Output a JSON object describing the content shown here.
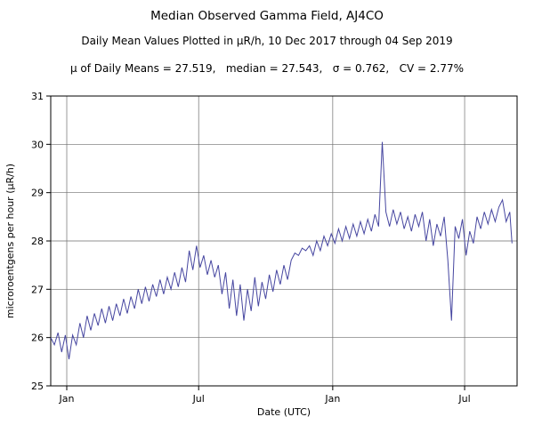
{
  "chart_data": {
    "type": "line",
    "title": "Median Observed Gamma Field, AJ4CO",
    "subtitle": "Daily Mean Values Plotted in μR/h, 10 Dec 2017 through 04 Sep 2019",
    "stats_line": "μ of Daily Means = 27.519,   median = 27.543,   σ = 0.762,   CV = 2.77%",
    "xlabel": "Date (UTC)",
    "ylabel": "microroentgens per hour (μR/h)",
    "ylim": [
      25,
      31
    ],
    "x_domain_days": [
      0,
      640
    ],
    "grid": true,
    "legend": "none",
    "line_color": "#4646a0",
    "grid_color": "#6e6e6e",
    "border_color": "#000000",
    "y_ticks": [
      25,
      26,
      27,
      28,
      29,
      30,
      31
    ],
    "x_ticks": [
      {
        "day": 22,
        "label": "Jan"
      },
      {
        "day": 203,
        "label": "Jul"
      },
      {
        "day": 387,
        "label": "Jan"
      },
      {
        "day": 568,
        "label": "Jul"
      }
    ],
    "series": [
      {
        "name": "daily mean gamma field (μR/h) vs days since 10 Dec 2017",
        "points": [
          [
            0,
            26.0
          ],
          [
            5,
            25.85
          ],
          [
            10,
            26.1
          ],
          [
            15,
            25.7
          ],
          [
            20,
            26.05
          ],
          [
            25,
            25.55
          ],
          [
            30,
            26.05
          ],
          [
            35,
            25.85
          ],
          [
            40,
            26.3
          ],
          [
            45,
            26.0
          ],
          [
            50,
            26.45
          ],
          [
            55,
            26.15
          ],
          [
            60,
            26.5
          ],
          [
            65,
            26.25
          ],
          [
            70,
            26.6
          ],
          [
            75,
            26.3
          ],
          [
            80,
            26.65
          ],
          [
            85,
            26.35
          ],
          [
            90,
            26.7
          ],
          [
            95,
            26.45
          ],
          [
            100,
            26.8
          ],
          [
            105,
            26.5
          ],
          [
            110,
            26.85
          ],
          [
            115,
            26.6
          ],
          [
            120,
            27.0
          ],
          [
            125,
            26.7
          ],
          [
            130,
            27.05
          ],
          [
            135,
            26.75
          ],
          [
            140,
            27.1
          ],
          [
            145,
            26.85
          ],
          [
            150,
            27.2
          ],
          [
            155,
            26.9
          ],
          [
            160,
            27.25
          ],
          [
            165,
            27.0
          ],
          [
            170,
            27.35
          ],
          [
            175,
            27.05
          ],
          [
            180,
            27.45
          ],
          [
            185,
            27.15
          ],
          [
            190,
            27.8
          ],
          [
            195,
            27.4
          ],
          [
            200,
            27.9
          ],
          [
            205,
            27.45
          ],
          [
            210,
            27.7
          ],
          [
            215,
            27.3
          ],
          [
            220,
            27.6
          ],
          [
            225,
            27.25
          ],
          [
            230,
            27.5
          ],
          [
            235,
            26.9
          ],
          [
            240,
            27.35
          ],
          [
            245,
            26.6
          ],
          [
            250,
            27.2
          ],
          [
            255,
            26.45
          ],
          [
            260,
            27.1
          ],
          [
            265,
            26.35
          ],
          [
            270,
            27.0
          ],
          [
            275,
            26.55
          ],
          [
            280,
            27.25
          ],
          [
            285,
            26.65
          ],
          [
            290,
            27.15
          ],
          [
            295,
            26.8
          ],
          [
            300,
            27.3
          ],
          [
            305,
            26.95
          ],
          [
            310,
            27.4
          ],
          [
            315,
            27.1
          ],
          [
            320,
            27.5
          ],
          [
            325,
            27.2
          ],
          [
            330,
            27.6
          ],
          [
            335,
            27.75
          ],
          [
            340,
            27.7
          ],
          [
            345,
            27.85
          ],
          [
            350,
            27.8
          ],
          [
            355,
            27.9
          ],
          [
            360,
            27.7
          ],
          [
            365,
            28.0
          ],
          [
            370,
            27.8
          ],
          [
            375,
            28.1
          ],
          [
            380,
            27.9
          ],
          [
            385,
            28.15
          ],
          [
            390,
            27.95
          ],
          [
            395,
            28.25
          ],
          [
            400,
            28.0
          ],
          [
            405,
            28.3
          ],
          [
            410,
            28.05
          ],
          [
            415,
            28.35
          ],
          [
            420,
            28.1
          ],
          [
            425,
            28.4
          ],
          [
            430,
            28.15
          ],
          [
            435,
            28.45
          ],
          [
            440,
            28.2
          ],
          [
            445,
            28.55
          ],
          [
            450,
            28.3
          ],
          [
            455,
            30.05
          ],
          [
            460,
            28.6
          ],
          [
            465,
            28.3
          ],
          [
            470,
            28.65
          ],
          [
            475,
            28.35
          ],
          [
            480,
            28.6
          ],
          [
            485,
            28.25
          ],
          [
            490,
            28.5
          ],
          [
            495,
            28.2
          ],
          [
            500,
            28.55
          ],
          [
            505,
            28.3
          ],
          [
            510,
            28.6
          ],
          [
            515,
            28.0
          ],
          [
            520,
            28.45
          ],
          [
            525,
            27.9
          ],
          [
            530,
            28.35
          ],
          [
            535,
            28.1
          ],
          [
            540,
            28.5
          ],
          [
            545,
            27.6
          ],
          [
            550,
            26.35
          ],
          [
            555,
            28.3
          ],
          [
            560,
            28.05
          ],
          [
            565,
            28.45
          ],
          [
            570,
            27.7
          ],
          [
            575,
            28.2
          ],
          [
            580,
            27.95
          ],
          [
            585,
            28.5
          ],
          [
            590,
            28.25
          ],
          [
            595,
            28.6
          ],
          [
            600,
            28.35
          ],
          [
            605,
            28.65
          ],
          [
            610,
            28.4
          ],
          [
            615,
            28.7
          ],
          [
            620,
            28.85
          ],
          [
            625,
            28.4
          ],
          [
            630,
            28.6
          ],
          [
            633,
            27.95
          ]
        ]
      }
    ]
  }
}
